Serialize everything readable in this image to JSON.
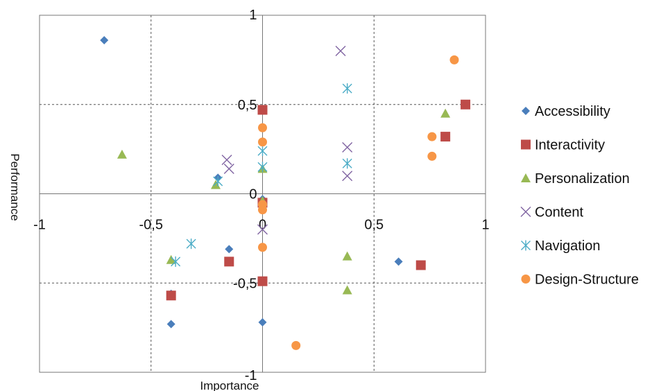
{
  "chart_data": {
    "type": "scatter",
    "xlabel": "Importance",
    "ylabel": "Performance",
    "xlim": [
      -1,
      1
    ],
    "ylim": [
      -1,
      1
    ],
    "xticks": [
      -1,
      -0.5,
      0,
      0.5,
      1
    ],
    "yticks": [
      -1,
      -0.5,
      0,
      0.5,
      1
    ],
    "xtick_labels": [
      "-1",
      "-0,5",
      "0",
      "0,5",
      "1"
    ],
    "ytick_labels": [
      "-1",
      "-0,5",
      "0",
      "0,5",
      "1"
    ],
    "grid": true,
    "legend_position": "right",
    "series": [
      {
        "name": "Accessibility",
        "marker": "diamond",
        "color": "#4a7ebb",
        "points": [
          [
            -0.71,
            0.86
          ],
          [
            -0.2,
            0.09
          ],
          [
            -0.15,
            -0.31
          ],
          [
            -0.41,
            -0.56
          ],
          [
            -0.41,
            -0.73
          ],
          [
            0,
            -0.72
          ],
          [
            0,
            -0.03
          ],
          [
            0.61,
            -0.38
          ]
        ]
      },
      {
        "name": "Interactivity",
        "marker": "square",
        "color": "#be4b48",
        "points": [
          [
            0,
            0.47
          ],
          [
            0.91,
            0.5
          ],
          [
            0.82,
            0.32
          ],
          [
            -0.15,
            -0.38
          ],
          [
            -0.41,
            -0.57
          ],
          [
            0,
            -0.49
          ],
          [
            0.71,
            -0.4
          ],
          [
            0,
            -0.05
          ]
        ]
      },
      {
        "name": "Personalization",
        "marker": "triangle",
        "color": "#98b954",
        "points": [
          [
            -0.63,
            0.22
          ],
          [
            -0.41,
            -0.37
          ],
          [
            -0.21,
            0.05
          ],
          [
            0,
            0.14
          ],
          [
            0.38,
            -0.35
          ],
          [
            0.38,
            -0.54
          ],
          [
            0.82,
            0.45
          ],
          [
            0,
            -0.04
          ]
        ]
      },
      {
        "name": "Content",
        "marker": "x",
        "color": "#8064a2",
        "points": [
          [
            -0.16,
            0.19
          ],
          [
            -0.15,
            0.14
          ],
          [
            0.35,
            0.8
          ],
          [
            0.38,
            0.26
          ],
          [
            0.38,
            0.1
          ],
          [
            0,
            -0.2
          ]
        ]
      },
      {
        "name": "Navigation",
        "marker": "star",
        "color": "#4bacc6",
        "points": [
          [
            -0.32,
            -0.28
          ],
          [
            -0.39,
            -0.38
          ],
          [
            -0.2,
            0.07
          ],
          [
            0,
            0.24
          ],
          [
            0,
            0.15
          ],
          [
            0.38,
            0.59
          ],
          [
            0.38,
            0.17
          ]
        ]
      },
      {
        "name": "Design-Structure",
        "marker": "circle",
        "color": "#f79646",
        "points": [
          [
            0,
            0.37
          ],
          [
            0,
            0.29
          ],
          [
            0,
            -0.06
          ],
          [
            0,
            -0.09
          ],
          [
            0,
            -0.3
          ],
          [
            0.15,
            -0.85
          ],
          [
            0.76,
            0.32
          ],
          [
            0.76,
            0.21
          ],
          [
            0.86,
            0.75
          ]
        ]
      }
    ]
  }
}
